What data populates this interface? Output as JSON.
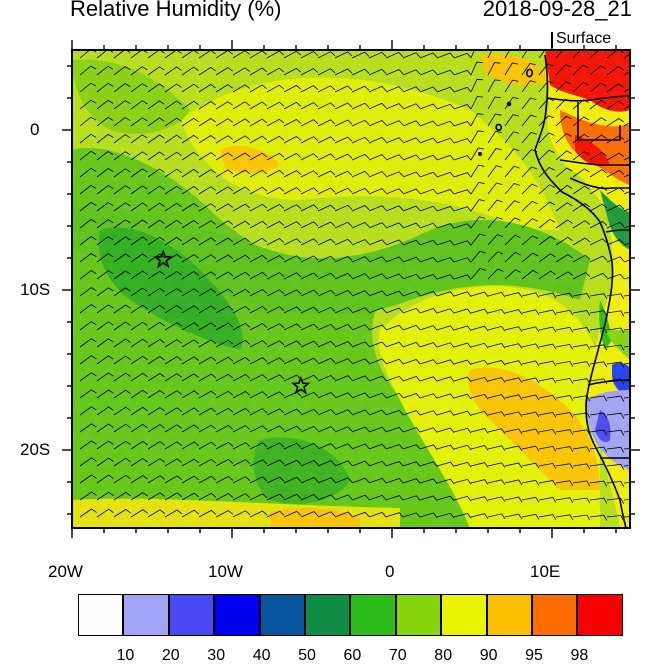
{
  "header": {
    "title": "Relative Humidity (%)",
    "valid_time": "2018-09-28_21",
    "level": "Surface"
  },
  "axes": {
    "lon_labels": [
      "20W",
      "10W",
      "0",
      "10E"
    ],
    "lat_labels": [
      "0",
      "10S",
      "20S"
    ]
  },
  "colorbar": {
    "colors": [
      "#fefefe",
      "#a4a4f6",
      "#4a4af4",
      "#0000f0",
      "#08549c",
      "#108c44",
      "#2cbc1c",
      "#88d40c",
      "#e8f402",
      "#fdc000",
      "#fc6c00",
      "#f80000"
    ],
    "labels": [
      "10",
      "20",
      "30",
      "40",
      "50",
      "60",
      "70",
      "80",
      "90",
      "95",
      "98"
    ]
  },
  "markers": [
    {
      "name": "star-marker-west",
      "lon": -14.3,
      "lat": -8.1
    },
    {
      "name": "star-marker-south",
      "lon": -5.7,
      "lat": -16.0
    }
  ]
}
